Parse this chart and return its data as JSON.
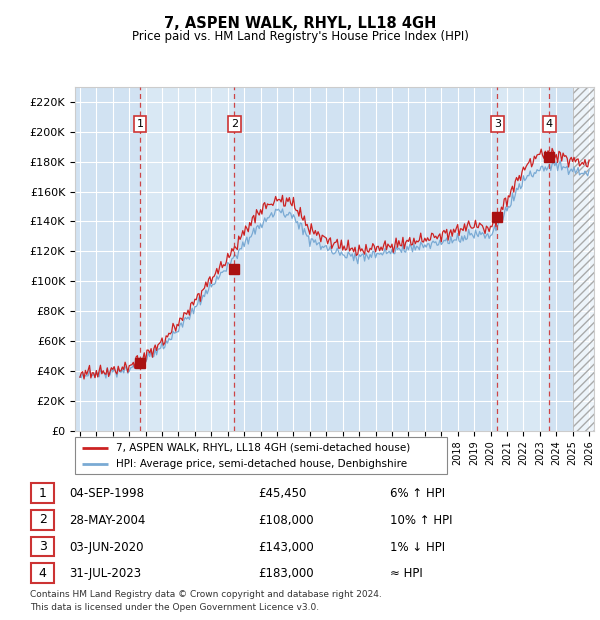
{
  "title": "7, ASPEN WALK, RHYL, LL18 4GH",
  "subtitle": "Price paid vs. HM Land Registry's House Price Index (HPI)",
  "ylabel_ticks": [
    "£0",
    "£20K",
    "£40K",
    "£60K",
    "£80K",
    "£100K",
    "£120K",
    "£140K",
    "£160K",
    "£180K",
    "£200K",
    "£220K"
  ],
  "ytick_vals": [
    0,
    20000,
    40000,
    60000,
    80000,
    100000,
    120000,
    140000,
    160000,
    180000,
    200000,
    220000
  ],
  "ylim": [
    0,
    230000
  ],
  "xlim_start": 1994.7,
  "xlim_end": 2026.3,
  "background_color": "#ffffff",
  "plot_bg_color": "#dce9f5",
  "grid_color": "#ffffff",
  "hpi_line_color": "#7aaad4",
  "price_line_color": "#cc2222",
  "sale_marker_color": "#aa1111",
  "dashed_line_color": "#cc3333",
  "legend_line1": "7, ASPEN WALK, RHYL, LL18 4GH (semi-detached house)",
  "legend_line2": "HPI: Average price, semi-detached house, Denbighshire",
  "sales": [
    {
      "num": 1,
      "date": "04-SEP-1998",
      "year": 1998.67,
      "price": 45450,
      "hpi_pct": "6% ↑ HPI"
    },
    {
      "num": 2,
      "date": "28-MAY-2004",
      "year": 2004.41,
      "price": 108000,
      "hpi_pct": "10% ↑ HPI"
    },
    {
      "num": 3,
      "date": "03-JUN-2020",
      "year": 2020.42,
      "price": 143000,
      "hpi_pct": "1% ↓ HPI"
    },
    {
      "num": 4,
      "date": "31-JUL-2023",
      "year": 2023.58,
      "price": 183000,
      "hpi_pct": "≈ HPI"
    }
  ],
  "footer_line1": "Contains HM Land Registry data © Crown copyright and database right 2024.",
  "footer_line2": "This data is licensed under the Open Government Licence v3.0.",
  "hatch_start": 2025.0
}
